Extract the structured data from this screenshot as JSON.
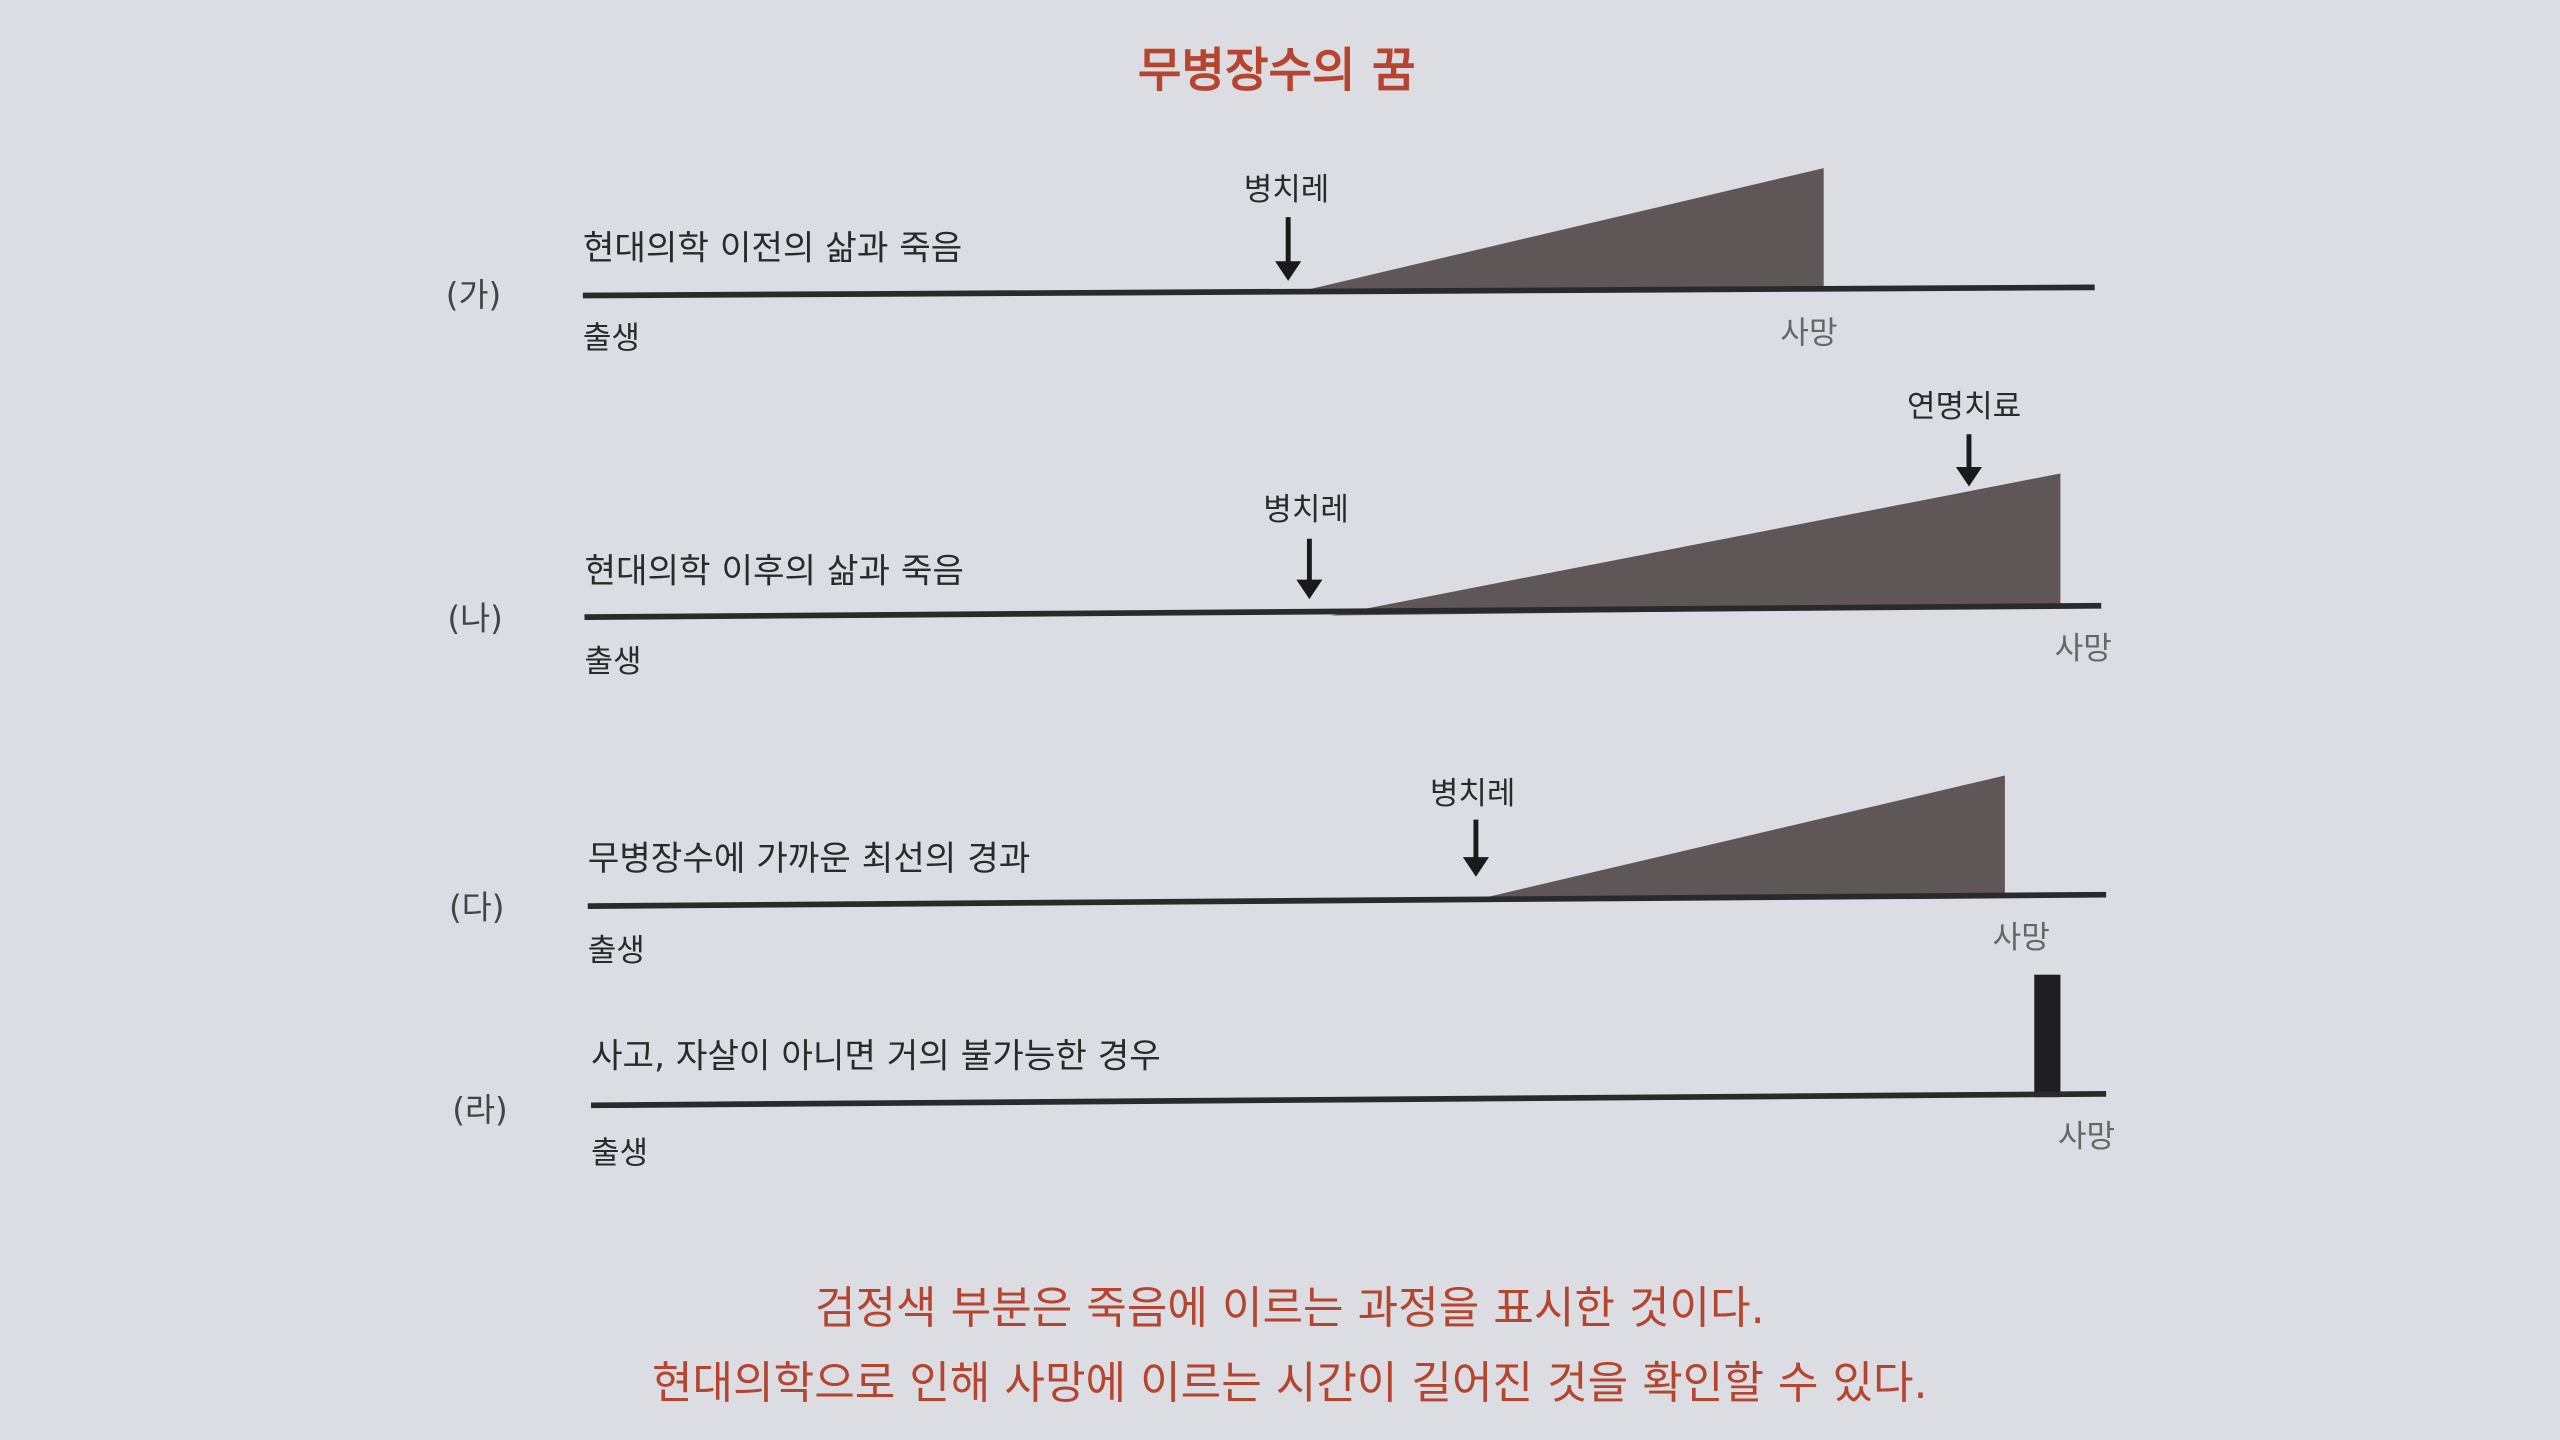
{
  "title": "무병장수의 꿈",
  "rows": [
    {
      "label": "(가)",
      "description": "현대의학 이전의 삶과 죽음",
      "birth": "출생",
      "death": "사망",
      "illness": "병치레"
    },
    {
      "label": "(나)",
      "description": "현대의학 이후의 삶과 죽음",
      "birth": "출생",
      "death": "사망",
      "illness": "병치레",
      "life_support": "연명치료"
    },
    {
      "label": "(다)",
      "description": "무병장수에 가까운 최선의 경과",
      "birth": "출생",
      "death": "사망",
      "illness": "병치레"
    },
    {
      "label": "(라)",
      "description": "사고, 자살이 아니면 거의 불가능한 경우",
      "birth": "출생",
      "death": "사망"
    }
  ],
  "caption": [
    "검정색 부분은 죽음에 이르는 과정을 표시한 것이다.",
    "현대의학으로 인해 사망에 이르는 시간이 길어진 것을 확인할 수 있다."
  ]
}
